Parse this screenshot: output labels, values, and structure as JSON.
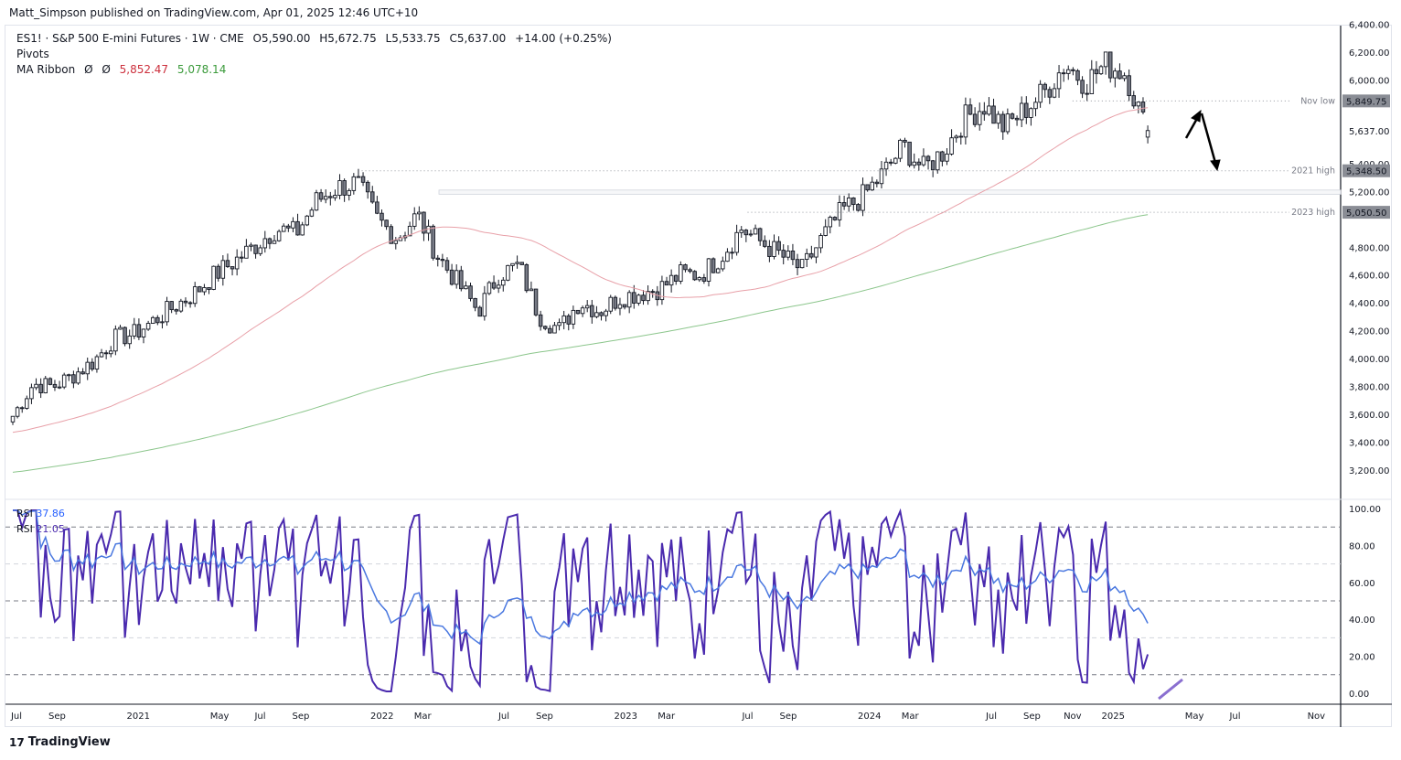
{
  "header": {
    "published": "Matt_Simpson published on TradingView.com, Apr 01, 2025 12:46 UTC+10"
  },
  "legend": {
    "symbol": "ES1! · S&P 500 E-mini Futures · 1W · CME",
    "open": "O5,590.00",
    "high": "H5,672.75",
    "low": "L5,533.75",
    "close": "C5,637.00",
    "change": "+14.00 (+0.25%)",
    "pivots": "Pivots",
    "ma_label": "MA Ribbon",
    "ma_sym1": "Ø",
    "ma_sym2": "Ø",
    "ma1": "5,852.47",
    "ma2": "5,078.14"
  },
  "rsi_legend": {
    "rsi1_label": "RSI",
    "rsi1_value": "37.86",
    "rsi2_label": "RSI",
    "rsi2_value": "21.05"
  },
  "footer": {
    "brand": "TradingView"
  },
  "colors": {
    "ma_fast": "#e8a0a8",
    "ma_slow": "#8cc68c",
    "rsi_fast": "#4a2aae",
    "rsi_slow": "#4a78e0",
    "ma1_text": "#cc2f3c",
    "ma2_text": "#3a9a3a",
    "rsi1_text": "#2962ff",
    "rsi2_text": "#4a2aae"
  },
  "chart_data": {
    "type": "candlestick",
    "title": "ES1! · S&P 500 E-mini Futures · 1W · CME",
    "months": [
      "2020-07",
      "2020-08",
      "2020-09",
      "2020-10",
      "2020-11",
      "2020-12",
      "2021-01",
      "2021-02",
      "2021-03",
      "2021-04",
      "2021-05",
      "2021-06",
      "2021-07",
      "2021-08",
      "2021-09",
      "2021-10",
      "2021-11",
      "2021-12",
      "2022-01",
      "2022-02",
      "2022-03",
      "2022-04",
      "2022-05",
      "2022-06",
      "2022-07",
      "2022-08",
      "2022-09",
      "2022-10",
      "2022-11",
      "2022-12",
      "2023-01",
      "2023-02",
      "2023-03",
      "2023-04",
      "2023-05",
      "2023-06",
      "2023-07",
      "2023-08",
      "2023-09",
      "2023-10",
      "2023-11",
      "2023-12",
      "2024-01",
      "2024-02",
      "2024-03",
      "2024-04",
      "2024-05",
      "2024-06",
      "2024-07",
      "2024-08",
      "2024-09",
      "2024-10",
      "2024-11",
      "2024-12",
      "2025-01",
      "2025-02",
      "2025-03"
    ],
    "monthly_close_approx": [
      3587,
      3817,
      3800,
      3882,
      3980,
      4145,
      4178,
      4276,
      4375,
      4473,
      4604,
      4703,
      4815,
      4933,
      4900,
      5130,
      5228,
      5261,
      5000,
      4867,
      5032,
      4736,
      4539,
      4342,
      4604,
      4670,
      4309,
      4210,
      4408,
      4342,
      4440,
      4473,
      4506,
      4604,
      4604,
      4736,
      4933,
      4834,
      4736,
      4637,
      4867,
      5064,
      5163,
      5327,
      5524,
      5360,
      5491,
      5721,
      5819,
      5655,
      5786,
      5918,
      6115,
      5983,
      6115,
      6049,
      5637
    ],
    "ylim": [
      3100,
      6450
    ],
    "y_ticks": [
      "6,400.00",
      "6,200.00",
      "6,000.00",
      "5,800.00",
      "5,637.00",
      "5,400.00",
      "5,200.00",
      "5,000.00",
      "4,800.00",
      "4,600.00",
      "4,400.00",
      "4,200.00",
      "4,000.00",
      "3,800.00",
      "3,600.00",
      "3,400.00",
      "3,200.00"
    ],
    "y_tick_values": [
      6400,
      6200,
      6000,
      5800,
      5637,
      5400,
      5200,
      5000,
      4800,
      4600,
      4400,
      4200,
      4000,
      3800,
      3600,
      3400,
      3200
    ],
    "x_ticks": [
      "Jul",
      "Sep",
      "2021",
      "May",
      "Jul",
      "Sep",
      "2022",
      "Mar",
      "Jul",
      "Sep",
      "2023",
      "Mar",
      "Jul",
      "Sep",
      "2024",
      "Mar",
      "Jul",
      "Sep",
      "Nov",
      "2025",
      "May",
      "Jul",
      "Nov"
    ],
    "x_tick_dates": [
      "2020-07",
      "2020-09",
      "2021-01",
      "2021-05",
      "2021-07",
      "2021-09",
      "2022-01",
      "2022-03",
      "2022-07",
      "2022-09",
      "2023-01",
      "2023-03",
      "2023-07",
      "2023-09",
      "2024-01",
      "2024-03",
      "2024-07",
      "2024-09",
      "2024-11",
      "2025-01",
      "2025-05",
      "2025-07",
      "2025-11"
    ],
    "pivots": [
      {
        "label": "Nov low",
        "value": 5849.75,
        "value_text": "5,849.75",
        "from": "2024-11"
      },
      {
        "label": "2021 high",
        "value": 5348.5,
        "value_text": "5,348.50",
        "from": "2021-12"
      },
      {
        "label": "2023 high",
        "value": 5050.5,
        "value_text": "5,050.50",
        "from": "2023-07"
      }
    ],
    "zone": [
      5180,
      5210
    ],
    "ma_periods": [
      50,
      200
    ],
    "rsi": {
      "ylim": [
        0,
        100
      ],
      "ticks": [
        "100.00",
        "80.00",
        "60.00",
        "40.00",
        "20.00",
        "0.00"
      ],
      "tick_values": [
        100,
        80,
        60,
        40,
        20,
        0
      ],
      "levels_dark": [
        90,
        50,
        10
      ],
      "levels_light": [
        70,
        30
      ],
      "last_slow": 37.86,
      "last_fast": 21.05
    }
  }
}
